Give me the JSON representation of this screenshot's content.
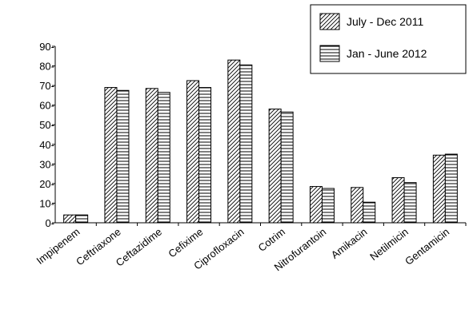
{
  "chart_data": {
    "type": "bar",
    "categories": [
      "Impipenem",
      "Ceftriaxone",
      "Ceftazidime",
      "Cefixime",
      "Ciprofloxacin",
      "Cotrim",
      "Nitrofurantoin",
      "Amikacin",
      "Netilmicin",
      "Gentamicin"
    ],
    "series": [
      {
        "name": "July - Dec 2011",
        "values": [
          4,
          69,
          68.5,
          72.5,
          83,
          58,
          18.5,
          18,
          23,
          34.5
        ]
      },
      {
        "name": "Jan - June 2012",
        "values": [
          4,
          67.5,
          66.5,
          69,
          80.5,
          56.5,
          17.5,
          10.5,
          20.5,
          35
        ]
      }
    ],
    "ylim": [
      0,
      90
    ],
    "yticks": [
      0,
      10,
      20,
      30,
      40,
      50,
      60,
      70,
      80,
      90
    ],
    "legend_position": "top-right",
    "xlabel": "",
    "ylabel": "",
    "title": "",
    "grid": false,
    "colors": {
      "bar_stroke": "#000000",
      "pattern": "#000000",
      "bar_fill": "#ffffff"
    }
  }
}
